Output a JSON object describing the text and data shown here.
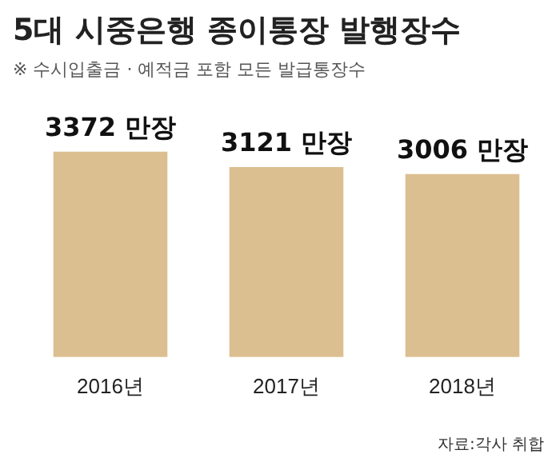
{
  "chart_data": {
    "type": "bar",
    "title": "5대 시중은행 종이통장 발행장수",
    "subtitle": "※ 수시입출금 · 예적금 포함 모든 발급통장수",
    "categories": [
      "2016년",
      "2017년",
      "2018년"
    ],
    "values": [
      3372,
      3121,
      3006
    ],
    "value_labels": [
      "3372 만장",
      "3121 만장",
      "3006 만장"
    ],
    "color": "#dcbf91",
    "annotations": [
      "자료:각사 취합"
    ]
  }
}
